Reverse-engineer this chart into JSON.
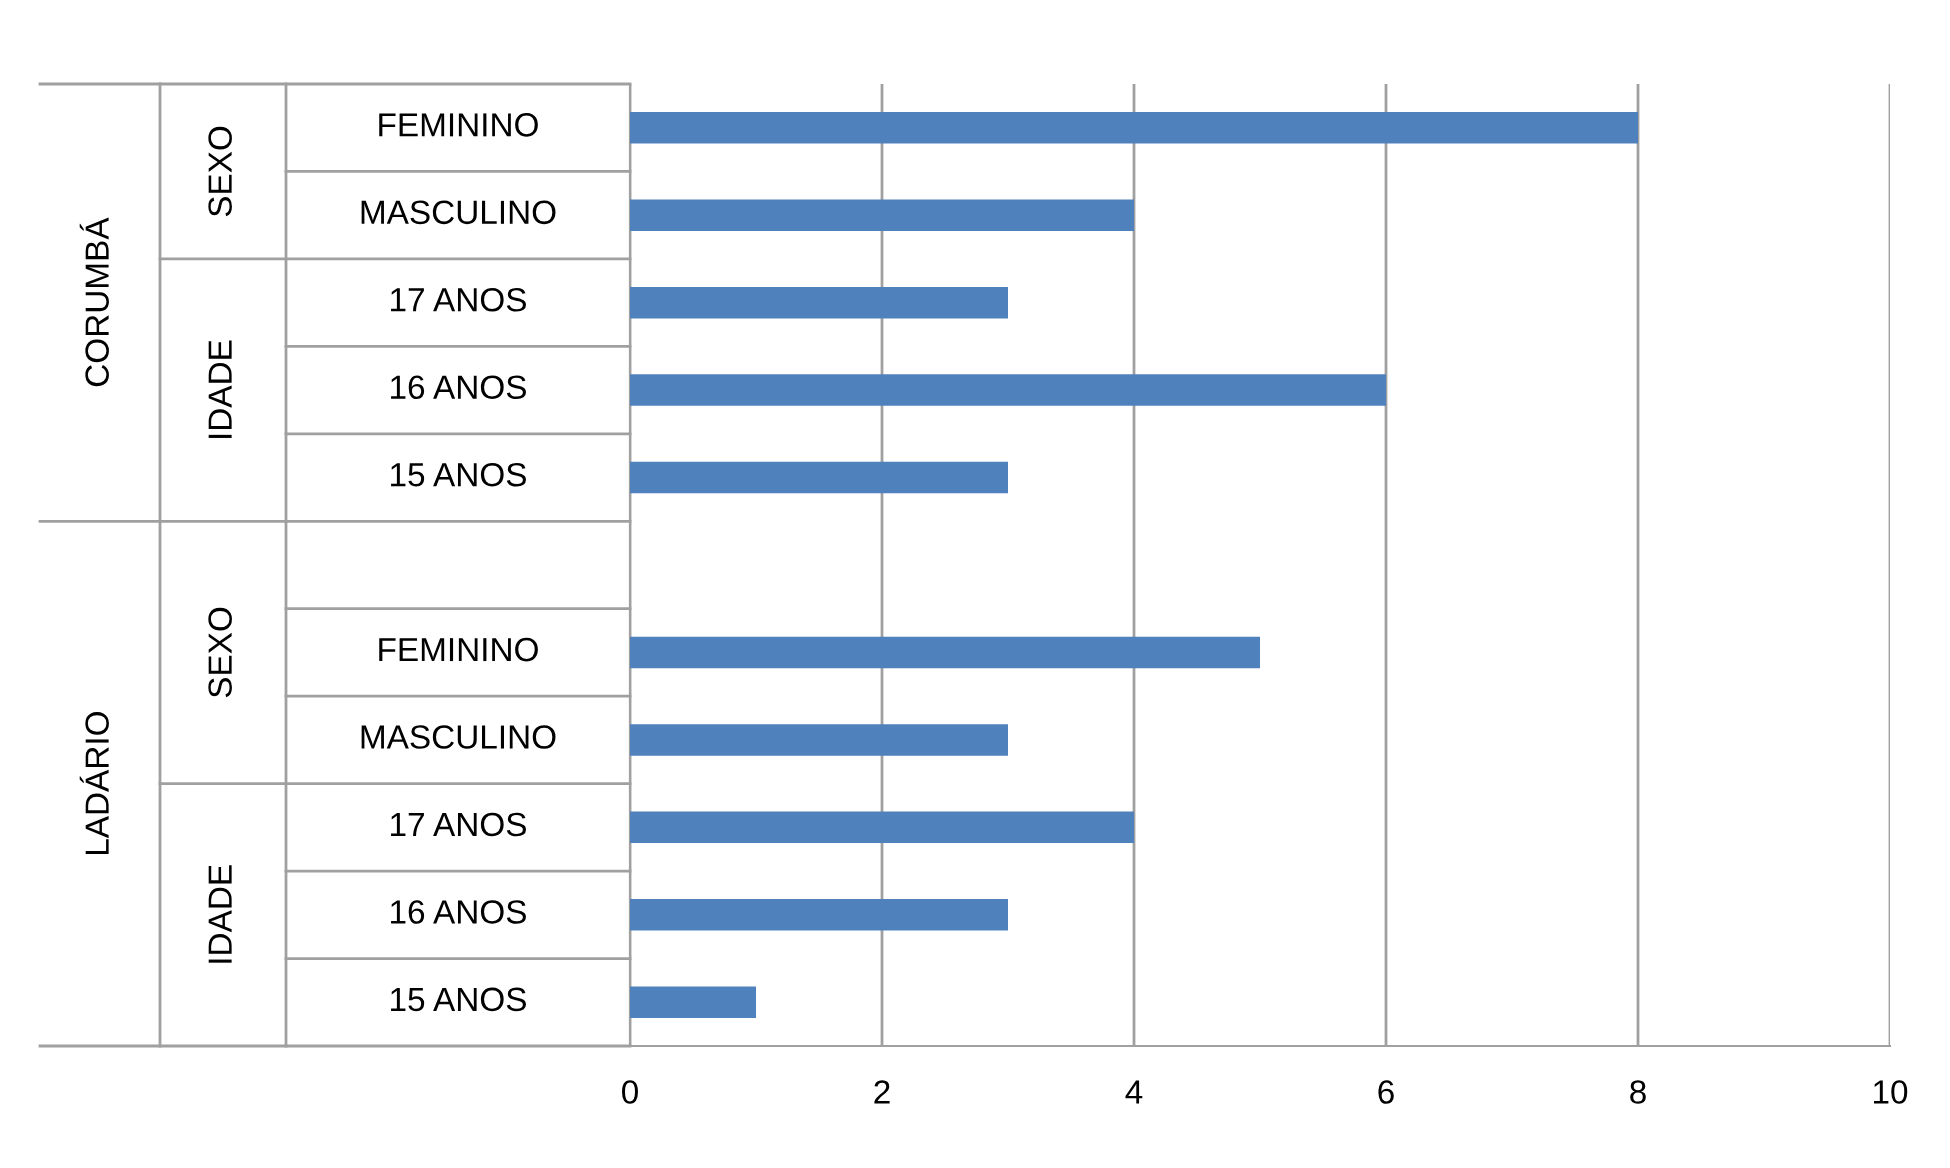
{
  "chart_data": {
    "type": "bar",
    "orientation": "horizontal",
    "categories": [
      "FEMININO",
      "MASCULINO",
      "17 ANOS",
      "16 ANOS",
      "15 ANOS",
      null,
      "FEMININO",
      "MASCULINO",
      "17 ANOS",
      "16 ANOS",
      "15 ANOS"
    ],
    "values": [
      8,
      4,
      3,
      6,
      3,
      null,
      5,
      3,
      4,
      3,
      1
    ],
    "color": "#4f81bd",
    "xlim": [
      0,
      10
    ],
    "xticks": [
      0,
      2,
      4,
      6,
      8,
      10
    ],
    "grid": "x",
    "annotations": [
      "CORUMBÁ",
      "SEXO",
      "IDADE",
      "LADÁRIO",
      "SEXO",
      "IDADE"
    ]
  }
}
